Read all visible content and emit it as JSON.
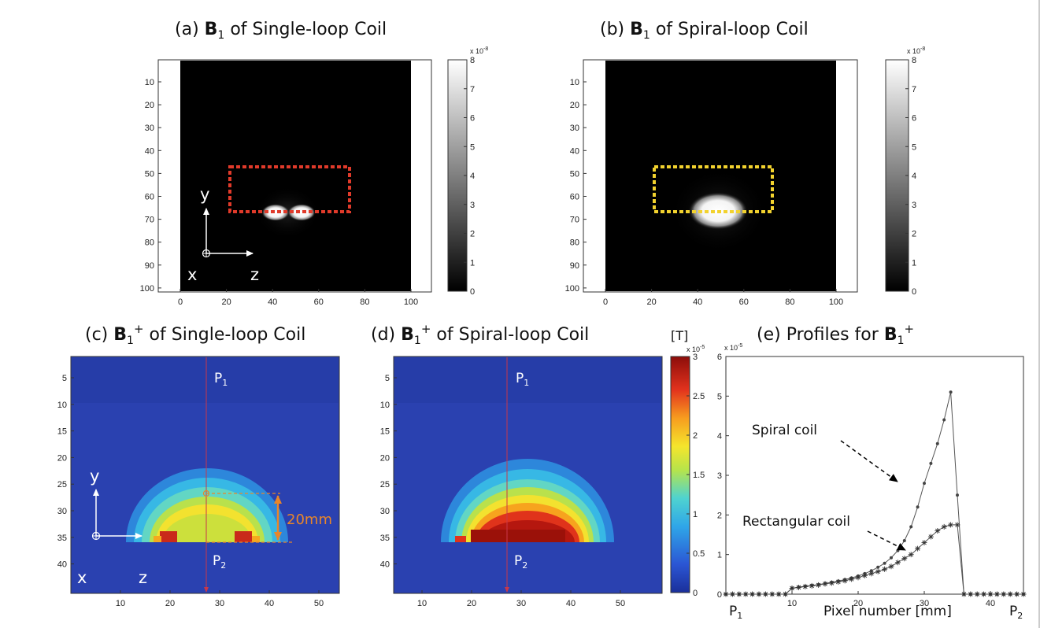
{
  "panels": {
    "a": {
      "title_prefix": "(a) ",
      "b": "B",
      "sub": "1",
      "sup": "",
      "title_rest": " of Single-loop Coil",
      "y_ticks": [
        "10",
        "20",
        "30",
        "40",
        "50",
        "60",
        "70",
        "80",
        "90",
        "100"
      ],
      "x_ticks": [
        "0",
        "20",
        "40",
        "60",
        "80",
        "100"
      ],
      "axis_y": "y",
      "axis_x": "x",
      "axis_z": "z",
      "box_color": "#e03a2a"
    },
    "b": {
      "title_prefix": "(b) ",
      "b": "B",
      "sub": "1",
      "sup": "",
      "title_rest": " of Spiral-loop Coil",
      "y_ticks": [
        "10",
        "20",
        "30",
        "40",
        "50",
        "60",
        "70",
        "80",
        "90",
        "100"
      ],
      "x_ticks": [
        "0",
        "20",
        "40",
        "60",
        "80",
        "100"
      ],
      "box_color": "#f2d22e"
    },
    "c": {
      "title_prefix": "(c) ",
      "b": "B",
      "sub": "1",
      "sup": "+",
      "title_rest": " of Single-loop Coil",
      "y_ticks": [
        "5",
        "10",
        "15",
        "20",
        "25",
        "30",
        "35",
        "40"
      ],
      "x_ticks": [
        "10",
        "20",
        "30",
        "40",
        "50"
      ],
      "p1": "P",
      "p2": "P",
      "p1_sub": "1",
      "p2_sub": "2",
      "dim_label": "20mm",
      "axis_y": "y",
      "axis_x": "x",
      "axis_z": "z",
      "dim_color": "#e8862a"
    },
    "d": {
      "title_prefix": "(d) ",
      "b": "B",
      "sub": "1",
      "sup": "+",
      "title_rest": " of Spiral-loop Coil",
      "y_ticks": [
        "5",
        "10",
        "15",
        "20",
        "25",
        "30",
        "35",
        "40"
      ],
      "x_ticks": [
        "10",
        "20",
        "30",
        "40",
        "50"
      ],
      "p1": "P",
      "p2": "P",
      "p1_sub": "1",
      "p2_sub": "2"
    }
  },
  "colorbar_gray": {
    "exponent_label": "x 10",
    "exponent": "-8",
    "ticks": [
      "0",
      "1",
      "2",
      "3",
      "4",
      "5",
      "6",
      "7",
      "8"
    ]
  },
  "colorbar_jet": {
    "unit": "[T]",
    "exponent_label": "x 10",
    "exponent": "-5",
    "ticks": [
      "0",
      "0.5",
      "1",
      "1.5",
      "2",
      "2.5",
      "3"
    ]
  },
  "chart_data": {
    "type": "line",
    "title_prefix": "(e) Profiles for ",
    "title_b": "B",
    "title_sub": "1",
    "title_sup": "+",
    "xlabel": "Pixel number [mm]",
    "x_end_left": "P",
    "x_end_left_sub": "1",
    "x_end_right": "P",
    "x_end_right_sub": "2",
    "y_exponent_label": "x 10",
    "y_exponent": "-5",
    "xlim": [
      0,
      45
    ],
    "ylim": [
      0,
      6
    ],
    "x_ticks": [
      10,
      20,
      30,
      40
    ],
    "y_ticks": [
      0,
      1,
      2,
      3,
      4,
      5,
      6
    ],
    "grid": false,
    "series": [
      {
        "name": "Spiral coil",
        "marker": "dot",
        "x": [
          0,
          1,
          2,
          3,
          4,
          5,
          6,
          7,
          8,
          9,
          10,
          11,
          12,
          13,
          14,
          15,
          16,
          17,
          18,
          19,
          20,
          21,
          22,
          23,
          24,
          25,
          26,
          27,
          28,
          29,
          30,
          31,
          32,
          33,
          34,
          35,
          36,
          37,
          38,
          39,
          40,
          41,
          42,
          43,
          44,
          45
        ],
        "y": [
          0,
          0,
          0,
          0,
          0,
          0,
          0,
          0,
          0,
          0,
          0.15,
          0.18,
          0.2,
          0.22,
          0.24,
          0.27,
          0.3,
          0.33,
          0.37,
          0.41,
          0.46,
          0.52,
          0.59,
          0.68,
          0.78,
          0.92,
          1.1,
          1.35,
          1.7,
          2.2,
          2.8,
          3.3,
          3.8,
          4.4,
          5.1,
          2.5,
          0,
          0,
          0,
          0,
          0,
          0,
          0,
          0,
          0,
          0
        ]
      },
      {
        "name": "Rectangular coil",
        "marker": "star",
        "x": [
          0,
          1,
          2,
          3,
          4,
          5,
          6,
          7,
          8,
          9,
          10,
          11,
          12,
          13,
          14,
          15,
          16,
          17,
          18,
          19,
          20,
          21,
          22,
          23,
          24,
          25,
          26,
          27,
          28,
          29,
          30,
          31,
          32,
          33,
          34,
          35,
          36,
          37,
          38,
          39,
          40,
          41,
          42,
          43,
          44,
          45
        ],
        "y": [
          0,
          0,
          0,
          0,
          0,
          0,
          0,
          0,
          0,
          0,
          0.15,
          0.17,
          0.19,
          0.21,
          0.23,
          0.26,
          0.28,
          0.31,
          0.34,
          0.38,
          0.42,
          0.47,
          0.52,
          0.57,
          0.63,
          0.7,
          0.8,
          0.9,
          1.0,
          1.15,
          1.3,
          1.45,
          1.6,
          1.7,
          1.75,
          1.75,
          0,
          0,
          0,
          0,
          0,
          0,
          0,
          0,
          0,
          0
        ]
      }
    ]
  }
}
